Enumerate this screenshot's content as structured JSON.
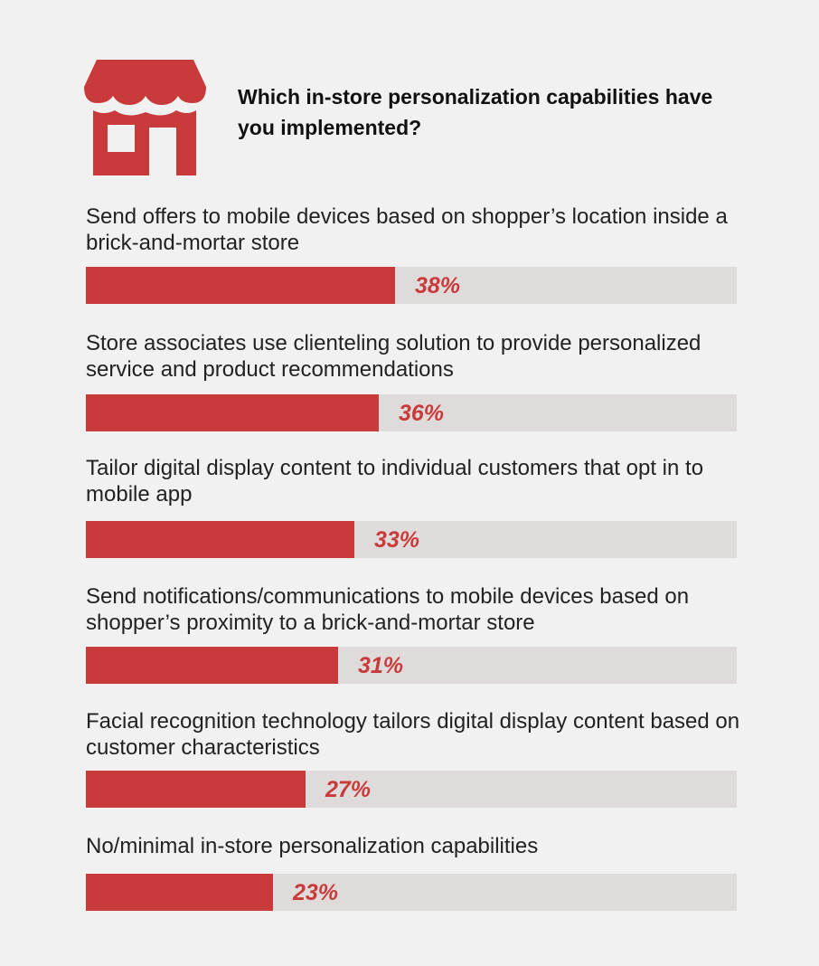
{
  "colors": {
    "accent": "#c93a3a",
    "track": "#e0dbdb",
    "background": "#f1f1f1"
  },
  "icon": "storefront-icon",
  "chart_data": {
    "type": "bar",
    "title": "Which in-store personalization capabilities have you implemented?",
    "xlabel": "",
    "ylabel": "",
    "xlim": [
      0,
      100
    ],
    "categories": [
      "Send offers to mobile devices based on shopper’s location inside a brick-and-mortar store",
      "Store associates use clienteling solution to provide personalized service and product recommendations",
      "Tailor digital display content to individual customers that opt in to mobile app",
      "Send notifications/communications to mobile devices based on shopper’s proximity to a brick-and-mortar store",
      "Facial recognition technology tailors digital display content based on customer characteristics",
      "No/minimal in-store personalization capabilities"
    ],
    "values": [
      38,
      36,
      33,
      31,
      27,
      23
    ],
    "value_labels": [
      "38%",
      "36%",
      "33%",
      "31%",
      "27%",
      "23%"
    ]
  }
}
